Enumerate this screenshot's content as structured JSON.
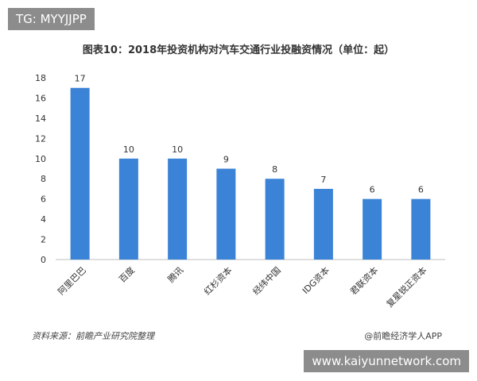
{
  "watermark_tag": "TG: MYYJJPP",
  "watermark_url": "www.kaiyunnetwork.com",
  "source_note": "资料来源：前瞻产业研究院整理",
  "credit": "@前瞻经济学人APP",
  "colors": {
    "bar": "#3b83d6",
    "axis": "#bfbfbf",
    "text": "#333333"
  },
  "chart_data": {
    "type": "bar",
    "title": "图表10：2018年投资机构对汽车交通行业投融资情况（单位：起）",
    "xlabel": "",
    "ylabel": "",
    "categories": [
      "阿里巴巴",
      "百度",
      "腾讯",
      "红杉资本",
      "经纬中国",
      "IDG资本",
      "君联资本",
      "复星锐正资本"
    ],
    "values": [
      17,
      10,
      10,
      9,
      8,
      7,
      6,
      6
    ],
    "yticks": [
      0,
      2,
      4,
      6,
      8,
      10,
      12,
      14,
      16,
      18
    ],
    "ylim": [
      0,
      18
    ],
    "grid": false,
    "legend": "none",
    "data_labels": true
  }
}
